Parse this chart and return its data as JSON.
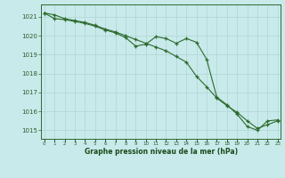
{
  "line1": [
    1021.2,
    1021.1,
    1020.9,
    1020.8,
    1020.7,
    1020.55,
    1020.35,
    1020.2,
    1020.0,
    1019.8,
    1019.6,
    1019.4,
    1019.2,
    1018.9,
    1018.6,
    1017.85,
    1017.3,
    1016.7,
    1016.3,
    1015.95,
    1015.5,
    1015.1,
    1015.3,
    1015.5
  ],
  "line2": [
    1021.2,
    1020.9,
    1020.85,
    1020.75,
    1020.65,
    1020.5,
    1020.3,
    1020.15,
    1019.9,
    1019.45,
    1019.55,
    1019.95,
    1019.85,
    1019.6,
    1019.85,
    1019.65,
    1018.75,
    1016.75,
    1016.35,
    1015.85,
    1015.2,
    1015.0,
    1015.5,
    1015.55
  ],
  "x": [
    0,
    1,
    2,
    3,
    4,
    5,
    6,
    7,
    8,
    9,
    10,
    11,
    12,
    13,
    14,
    15,
    16,
    17,
    18,
    19,
    20,
    21,
    22,
    23
  ],
  "xlim": [
    -0.3,
    23.3
  ],
  "ylim": [
    1014.55,
    1021.65
  ],
  "yticks": [
    1015,
    1016,
    1017,
    1018,
    1019,
    1020,
    1021
  ],
  "xlabel": "Graphe pression niveau de la mer (hPa)",
  "line_color": "#2d6a2d",
  "bg_color": "#c8eaea",
  "grid_color": "#b0d4d4",
  "tick_color": "#2d5a2d",
  "label_color": "#1a4a1a"
}
